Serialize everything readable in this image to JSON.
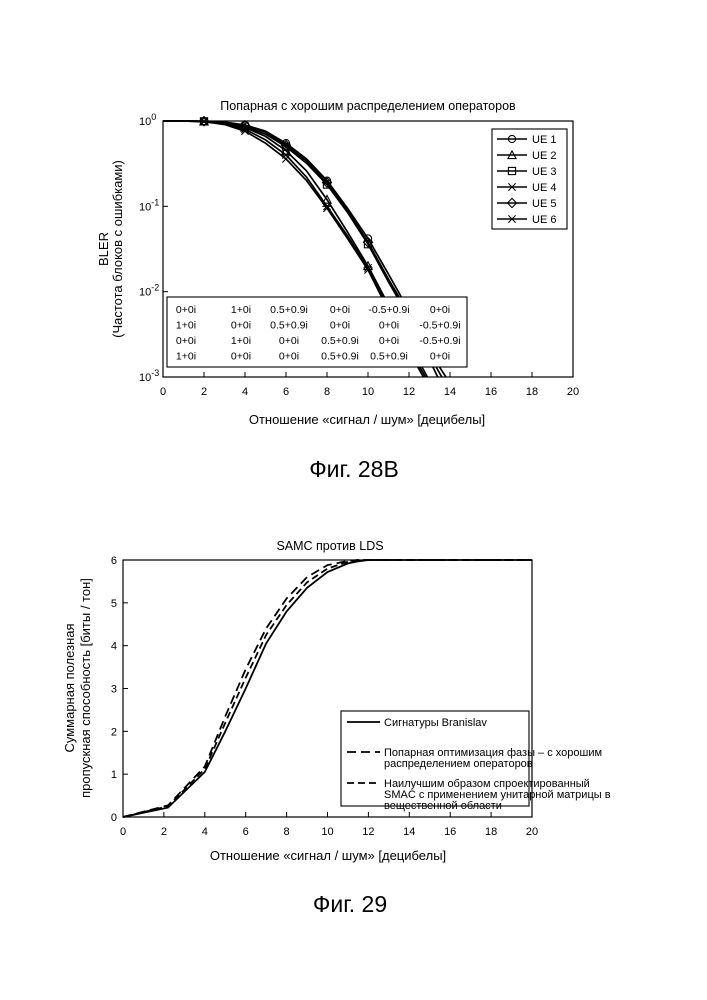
{
  "figures": [
    {
      "caption": "Фиг. 28B",
      "chart_data": {
        "type": "line",
        "title": "Попарная с хорошим распределением операторов",
        "xlabel": "Отношение «сигнал / шум» [децибелы]",
        "ylabel_lines": [
          "BLER",
          "(Частота блоков с ошибками)"
        ],
        "xlim": [
          0,
          20
        ],
        "ylim": [
          0.001,
          1
        ],
        "yscale": "log",
        "x_ticks": [
          0,
          2,
          4,
          6,
          8,
          10,
          12,
          14,
          16,
          18,
          20
        ],
        "y_ticks": [
          {
            "base": "10",
            "exp": "0",
            "value": 1
          },
          {
            "base": "10",
            "exp": "-1",
            "value": 0.1
          },
          {
            "base": "10",
            "exp": "-2",
            "value": 0.01
          },
          {
            "base": "10",
            "exp": "-3",
            "value": 0.001
          }
        ],
        "legend_position": "top-right",
        "series": [
          {
            "name": "UE 1",
            "marker": "circle",
            "x": [
              0,
              1,
              2,
              3,
              4,
              5,
              6,
              7,
              8,
              9,
              10,
              11,
              12,
              13,
              13.8
            ],
            "y": [
              1,
              1,
              0.995,
              0.97,
              0.9,
              0.76,
              0.55,
              0.36,
              0.2,
              0.095,
              0.042,
              0.016,
              0.006,
              0.002,
              0.001
            ]
          },
          {
            "name": "UE 2",
            "marker": "triangle",
            "x": [
              0,
              1,
              2,
              3,
              4,
              5,
              6,
              7,
              8,
              9,
              10,
              11,
              12,
              12.9
            ],
            "y": [
              1,
              1,
              0.99,
              0.95,
              0.84,
              0.66,
              0.45,
              0.26,
              0.12,
              0.05,
              0.02,
              0.007,
              0.0025,
              0.001
            ]
          },
          {
            "name": "UE 3",
            "marker": "square",
            "x": [
              0,
              1,
              2,
              3,
              4,
              5,
              6,
              7,
              8,
              9,
              10,
              11,
              12,
              13.4
            ],
            "y": [
              1,
              1,
              0.99,
              0.96,
              0.86,
              0.7,
              0.5,
              0.32,
              0.18,
              0.085,
              0.036,
              0.013,
              0.005,
              0.001
            ]
          },
          {
            "name": "UE 4",
            "marker": "asterisk",
            "x": [
              0,
              1,
              2,
              3,
              4,
              5,
              6,
              7,
              8,
              9,
              10,
              11,
              12,
              12.8
            ],
            "y": [
              1,
              1,
              0.985,
              0.93,
              0.8,
              0.6,
              0.4,
              0.22,
              0.1,
              0.045,
              0.019,
              0.0065,
              0.0022,
              0.001
            ]
          },
          {
            "name": "UE 5",
            "marker": "diamond",
            "x": [
              0,
              1,
              2,
              3,
              4,
              5,
              6,
              7,
              8,
              9,
              10,
              11,
              12,
              13,
              13.6
            ],
            "y": [
              1,
              1,
              0.995,
              0.97,
              0.89,
              0.74,
              0.52,
              0.34,
              0.19,
              0.09,
              0.038,
              0.014,
              0.0055,
              0.0018,
              0.001
            ]
          },
          {
            "name": "UE 6",
            "marker": "x",
            "x": [
              0,
              1,
              2,
              3,
              4,
              5,
              6,
              7,
              8,
              9,
              10,
              11,
              12,
              12.7
            ],
            "y": [
              1,
              1,
              0.98,
              0.91,
              0.76,
              0.55,
              0.36,
              0.2,
              0.095,
              0.042,
              0.018,
              0.006,
              0.002,
              0.001
            ]
          }
        ],
        "table": [
          [
            "0+0i",
            "1+0i",
            "0.5+0.9i",
            "0+0i",
            "-0.5+0.9i",
            "0+0i"
          ],
          [
            "1+0i",
            "0+0i",
            "0.5+0.9i",
            "0+0i",
            "0+0i",
            "-0.5+0.9i"
          ],
          [
            "0+0i",
            "1+0i",
            "0+0i",
            "0.5+0.9i",
            "0+0i",
            "-0.5+0.9i"
          ],
          [
            "1+0i",
            "0+0i",
            "0+0i",
            "0.5+0.9i",
            "0.5+0.9i",
            "0+0i"
          ]
        ]
      }
    },
    {
      "caption": "Фиг. 29",
      "chart_data": {
        "type": "line",
        "title": "SAMC против LDS",
        "xlabel": "Отношение «сигнал / шум» [децибелы]",
        "ylabel_lines": [
          "Суммарная полезная",
          "пропускная способность [биты / тон]"
        ],
        "xlim": [
          0,
          20
        ],
        "ylim": [
          0,
          6
        ],
        "x_ticks": [
          0,
          2,
          4,
          6,
          8,
          10,
          12,
          14,
          16,
          18,
          20
        ],
        "y_ticks": [
          0,
          1,
          2,
          3,
          4,
          5,
          6
        ],
        "legend_position": "bottom-right",
        "series": [
          {
            "name_lines": [
              "Сигнатуры Branislav"
            ],
            "style": "solid",
            "x": [
              0,
              2.2,
              4,
              5,
              6,
              7,
              8,
              9,
              10,
              11,
              11.5,
              12,
              20
            ],
            "y": [
              0,
              0.22,
              1.05,
              2.0,
              3.0,
              4.05,
              4.8,
              5.35,
              5.72,
              5.92,
              5.97,
              6.0,
              6.0
            ]
          },
          {
            "name_lines": [
              "Попарная оптимизация фазы – с хорошим",
              "распределением операторов"
            ],
            "style": "dashed",
            "x": [
              0,
              2.2,
              4,
              5,
              6,
              7,
              8,
              9,
              10,
              11,
              11.5,
              12,
              20
            ],
            "y": [
              0,
              0.27,
              1.18,
              2.35,
              3.45,
              4.4,
              5.1,
              5.6,
              5.88,
              5.98,
              6.0,
              6.0,
              6.0
            ]
          },
          {
            "name_lines": [
              "Наилучшим образом спроектированный",
              "SMAC с применением унитарной матрицы в",
              "вещественной области"
            ],
            "style": "dashed",
            "x": [
              0,
              2.2,
              4,
              5,
              6,
              7,
              8,
              9,
              10,
              11,
              11.5,
              12,
              20
            ],
            "y": [
              0,
              0.25,
              1.12,
              2.2,
              3.25,
              4.25,
              4.95,
              5.48,
              5.8,
              5.96,
              6.0,
              6.0,
              6.0
            ]
          }
        ]
      }
    }
  ]
}
